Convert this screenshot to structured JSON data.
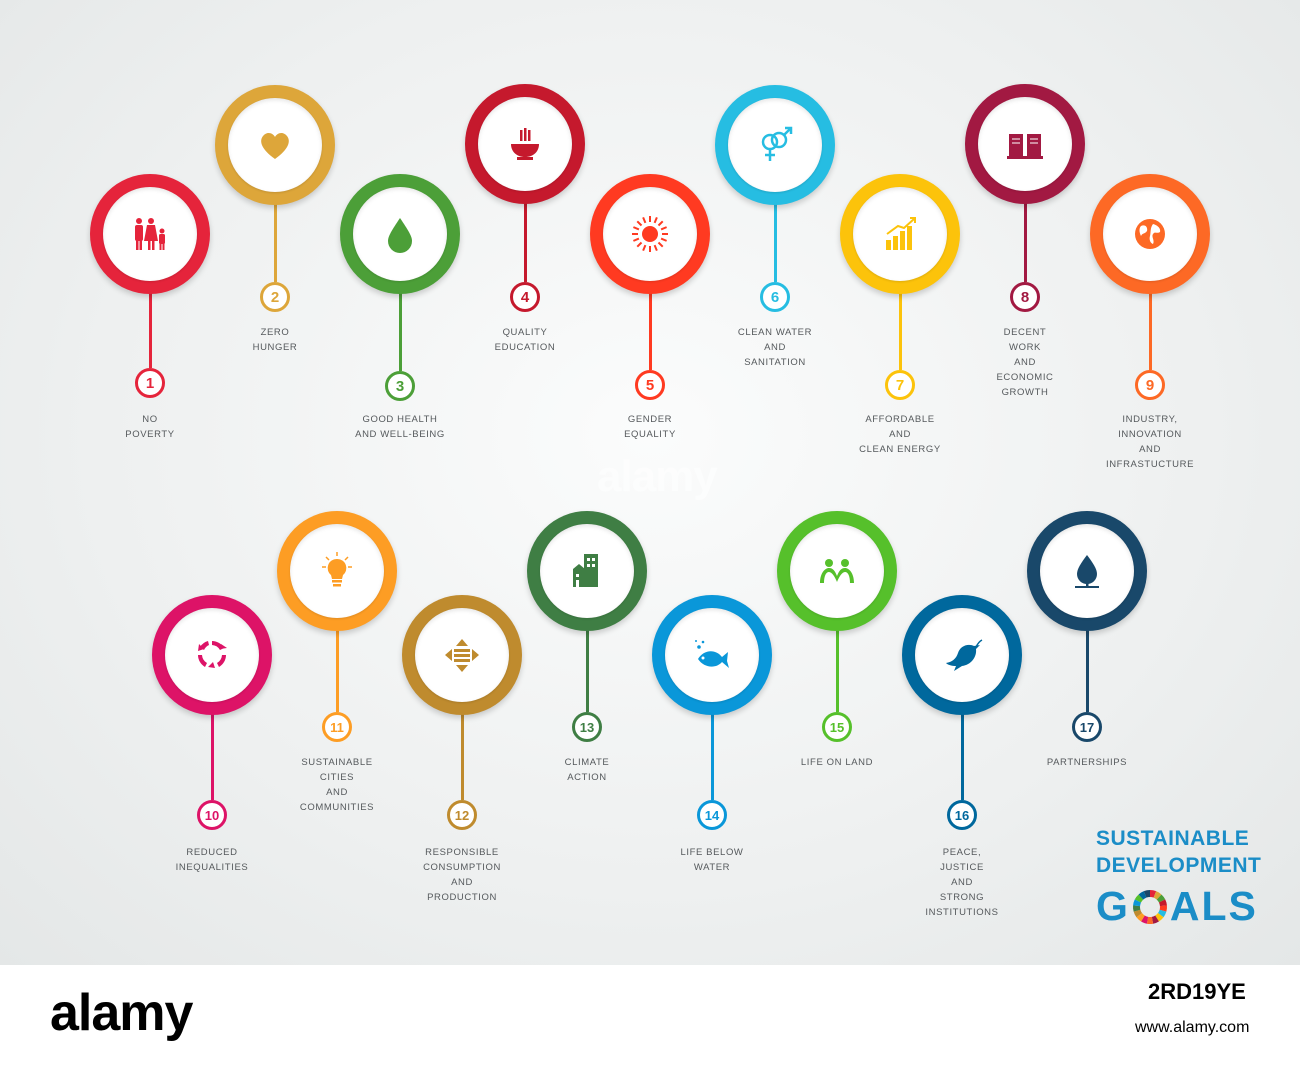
{
  "goals": [
    {
      "number": "1",
      "label": "NO\nPOVERTY",
      "color": "#e5243b",
      "icon": "family-icon"
    },
    {
      "number": "2",
      "label": "ZERO\nHUNGER",
      "color": "#dda63a",
      "icon": "heart-icon"
    },
    {
      "number": "3",
      "label": "GOOD HEALTH\nAND WELL-BEING",
      "color": "#4c9f38",
      "icon": "water-drop-icon"
    },
    {
      "number": "4",
      "label": "QUALITY\nEDUCATION",
      "color": "#c5192d",
      "icon": "bowl-icon"
    },
    {
      "number": "5",
      "label": "GENDER\nEQUALITY",
      "color": "#ff3a21",
      "icon": "sun-icon"
    },
    {
      "number": "6",
      "label": "CLEAN WATER\nAND\nSANITATION",
      "color": "#26bde2",
      "icon": "gender-icon"
    },
    {
      "number": "7",
      "label": "AFFORDABLE\nAND\nCLEAN ENERGY",
      "color": "#fcc30b",
      "icon": "growth-chart-icon"
    },
    {
      "number": "8",
      "label": "DECENT\nWORK\nAND\nECONOMIC\nGROWTH",
      "color": "#a21942",
      "icon": "book-icon"
    },
    {
      "number": "9",
      "label": "INDUSTRY,\nINNOVATION\nAND\nINFRASTUCTURE",
      "color": "#fd6925",
      "icon": "globe-icon"
    },
    {
      "number": "10",
      "label": "REDUCED\nINEQUALITIES",
      "color": "#dd1367",
      "icon": "recycle-icon"
    },
    {
      "number": "11",
      "label": "SUSTAINABLE\nCITIES\nAND\nCOMMUNITIES",
      "color": "#fd9d24",
      "icon": "lightbulb-icon"
    },
    {
      "number": "12",
      "label": "RESPONSIBLE\nCONSUMPTION\nAND\nPRODUCTION",
      "color": "#bf8b2e",
      "icon": "arrows-icon"
    },
    {
      "number": "13",
      "label": "CLIMATE\nACTION",
      "color": "#3f7e44",
      "icon": "buildings-icon"
    },
    {
      "number": "14",
      "label": "LIFE BELOW\nWATER",
      "color": "#0a97d9",
      "icon": "fish-icon"
    },
    {
      "number": "15",
      "label": "LIFE ON LAND",
      "color": "#56c02b",
      "icon": "people-icon"
    },
    {
      "number": "16",
      "label": "PEACE,\nJUSTICE\nAND\nSTRONG\nINSTITUTIONS",
      "color": "#00689d",
      "icon": "dove-icon"
    },
    {
      "number": "17",
      "label": "PARTNERSHIPS",
      "color": "#19486a",
      "icon": "tree-icon"
    }
  ],
  "logo": {
    "line1": "SUSTAINABLE",
    "line2": "DEVELOPMENT",
    "line3_start": "G",
    "line3_end": "ALS",
    "color": "#1b8dc7"
  },
  "watermark": "alamy",
  "footer": {
    "brand": "alamy",
    "image_id": "2RD19YE",
    "url": "www.alamy.com"
  }
}
